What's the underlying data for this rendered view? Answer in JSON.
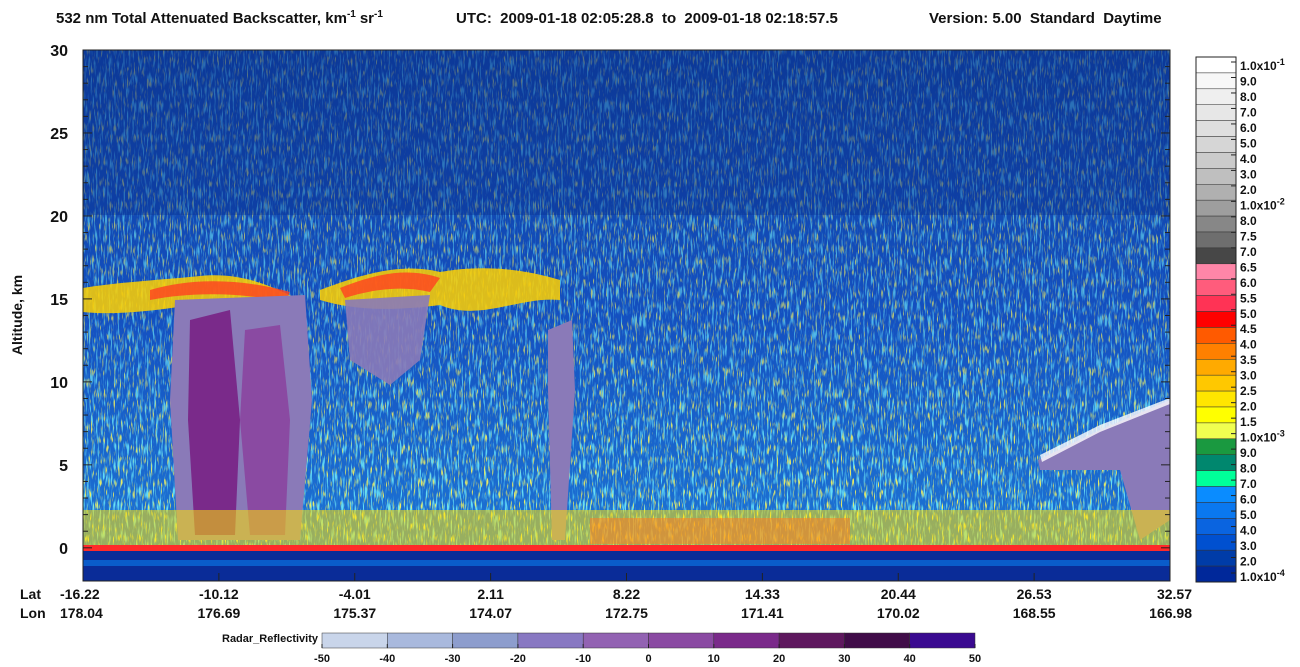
{
  "chart_data": {
    "type": "heatmap",
    "title": {
      "text": "532 nm Total Attenuated Backscatter, km",
      "unit1_exp": "-1",
      "unit2": "sr",
      "unit2_exp": "-1"
    },
    "subtitle_utc": "UTC:  2009-01-18 02:05:28.8  to  2009-01-18 02:18:57.5",
    "subtitle_version": "Version: 5.00  Standard  Daytime",
    "y_label": "Altitude, km",
    "ylim": [
      -2,
      30
    ],
    "yticks": [
      0,
      5,
      10,
      15,
      20,
      25,
      30
    ],
    "x_row_labels": [
      "Lat",
      "Lon"
    ],
    "lat": [
      -16.22,
      -10.12,
      -4.01,
      2.11,
      8.22,
      14.33,
      20.44,
      26.53,
      32.57
    ],
    "lon": [
      178.04,
      176.69,
      175.37,
      174.07,
      172.75,
      171.41,
      170.02,
      168.55,
      166.98
    ],
    "colorbar": {
      "labels": [
        {
          "text": "1.0x10",
          "sup": "-1"
        },
        "9.0",
        "8.0",
        "7.0",
        "6.0",
        "5.0",
        "4.0",
        "3.0",
        "2.0",
        {
          "text": "1.0x10",
          "sup": "-2"
        },
        "8.0",
        "7.5",
        "7.0",
        "6.5",
        "6.0",
        "5.5",
        "5.0",
        "4.5",
        "4.0",
        "3.5",
        "3.0",
        "2.5",
        "2.0",
        "1.5",
        {
          "text": "1.0x10",
          "sup": "-3"
        },
        "9.0",
        "8.0",
        "7.0",
        "6.0",
        "5.0",
        "4.0",
        "3.0",
        "2.0",
        {
          "text": "1.0x10",
          "sup": "-4"
        }
      ],
      "colors": [
        "#ffffff",
        "#f7f7f7",
        "#efefef",
        "#e7e7e7",
        "#dfdfdf",
        "#d6d6d6",
        "#cbcbcb",
        "#bfbfbf",
        "#b0b0b0",
        "#9e9e9e",
        "#878787",
        "#6e6e6e",
        "#474747",
        "#ff86a8",
        "#ff5c7c",
        "#ff3355",
        "#ff0000",
        "#ff5a00",
        "#ff8000",
        "#ffaa00",
        "#ffc800",
        "#ffe600",
        "#ffff00",
        "#f0ff50",
        "#1a9940",
        "#00876e",
        "#00ff99",
        "#0a8cff",
        "#0a78f0",
        "#0a64e0",
        "#0050d0",
        "#003ca8",
        "#00289a"
      ]
    },
    "radar_colorbar": {
      "label": "Radar_Reflectivity",
      "xlim": [
        -50,
        50
      ],
      "ticks": [
        -50,
        -40,
        -30,
        -20,
        -10,
        0,
        10,
        20,
        30,
        40,
        50
      ],
      "colors": [
        "#c9d5ea",
        "#a9b9dd",
        "#8d9dcd",
        "#8878c2",
        "#9262b2",
        "#8a4aa2",
        "#7a2a8a",
        "#5e185e",
        "#400c48",
        "#3a0a90"
      ]
    }
  }
}
